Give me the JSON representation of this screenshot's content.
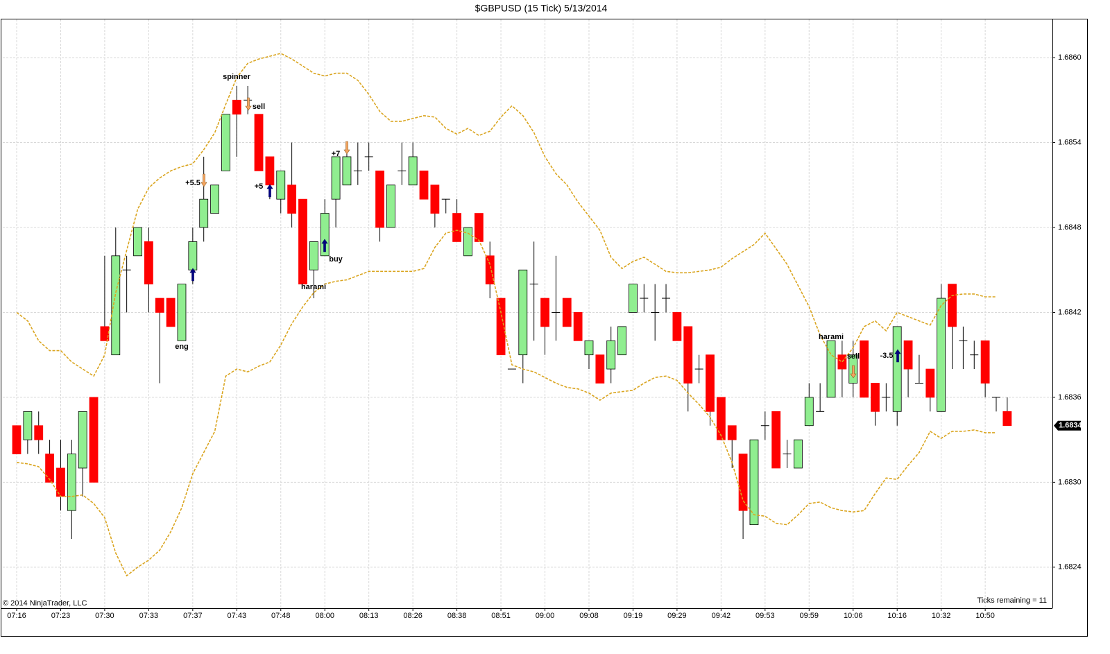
{
  "chart_data": {
    "type": "candlestick",
    "title": "$GBPUSD (15 Tick)  5/13/2014",
    "copyright": "© 2014 NinjaTrader, LLC",
    "status": "Ticks remaining = 11",
    "current_price": 1.6834,
    "annotations": [
      "spinner",
      "sell",
      "+5.5",
      "+5",
      "eng",
      "harami",
      "+7",
      "buy",
      "harami",
      "sell",
      "-3.5"
    ],
    "categories": [
      "07:16",
      null,
      null,
      null,
      "07:23",
      null,
      null,
      null,
      "07:30",
      null,
      null,
      null,
      "07:33",
      null,
      null,
      null,
      "07:37",
      null,
      null,
      null,
      "07:43",
      null,
      null,
      null,
      "07:48",
      null,
      null,
      null,
      "08:00",
      null,
      null,
      null,
      "08:13",
      null,
      null,
      null,
      "08:26",
      null,
      null,
      null,
      "08:38",
      null,
      null,
      null,
      "08:51",
      null,
      null,
      null,
      "09:00",
      null,
      null,
      null,
      "09:08",
      null,
      null,
      null,
      "09:19",
      null,
      null,
      null,
      "09:29",
      null,
      null,
      null,
      "09:42",
      null,
      null,
      null,
      "09:53",
      null,
      null,
      null,
      "09:59",
      null,
      null,
      null,
      "10:06",
      null,
      null,
      null,
      "10:16",
      null,
      null,
      null,
      "10:32",
      null,
      null,
      null,
      "10:50",
      null,
      null
    ],
    "open": [
      1.6834,
      1.6833,
      1.6834,
      1.6832,
      1.6831,
      1.6828,
      1.6831,
      1.6836,
      1.6841,
      1.6839,
      1.6845,
      1.6846,
      1.6847,
      1.6843,
      1.6843,
      1.684,
      1.6845,
      1.6848,
      1.6849,
      1.6852,
      1.6857,
      1.6857,
      1.6856,
      1.6853,
      1.685,
      1.6851,
      1.685,
      1.6845,
      1.6846,
      1.685,
      1.6851,
      1.6852,
      1.6853,
      1.6852,
      1.6848,
      1.6852,
      1.6851,
      1.6852,
      1.6851,
      1.685,
      1.6849,
      1.6846,
      1.6849,
      1.6846,
      1.6843,
      1.6838,
      1.6839,
      1.6844,
      1.6843,
      1.6842,
      1.6843,
      1.6842,
      1.6839,
      1.6839,
      1.6838,
      1.6839,
      1.6842,
      1.6843,
      1.6842,
      1.6843,
      1.6842,
      1.6841,
      1.6838,
      1.6839,
      1.6836,
      1.6834,
      1.6832,
      1.6827,
      1.6834,
      1.6835,
      1.6832,
      1.6831,
      1.6834,
      1.6835,
      1.6836,
      1.6839,
      1.6837,
      1.684,
      1.6837,
      1.6836,
      1.6835,
      1.684,
      1.6837,
      1.6838,
      1.6835,
      1.6844,
      1.684,
      1.6839,
      1.684,
      1.6836,
      1.6835
    ],
    "high": [
      1.6834,
      1.6835,
      1.6835,
      1.6833,
      1.6833,
      1.6833,
      1.6835,
      1.6836,
      1.6846,
      1.6848,
      1.6846,
      1.6848,
      1.6848,
      1.6843,
      1.6843,
      1.6844,
      1.6848,
      1.6853,
      1.6851,
      1.6856,
      1.6858,
      1.6858,
      1.6856,
      1.6853,
      1.6852,
      1.6854,
      1.685,
      1.6847,
      1.685,
      1.6853,
      1.6854,
      1.6854,
      1.6854,
      1.6852,
      1.6851,
      1.6854,
      1.6854,
      1.6852,
      1.6851,
      1.685,
      1.685,
      1.6848,
      1.6849,
      1.6847,
      1.6843,
      1.6838,
      1.6845,
      1.6847,
      1.6843,
      1.6846,
      1.6843,
      1.6842,
      1.684,
      1.6839,
      1.6841,
      1.6841,
      1.6844,
      1.6844,
      1.6844,
      1.6844,
      1.6842,
      1.6841,
      1.6839,
      1.6839,
      1.6836,
      1.6834,
      1.6832,
      1.6833,
      1.6835,
      1.6835,
      1.6833,
      1.6833,
      1.6837,
      1.6837,
      1.684,
      1.684,
      1.684,
      1.684,
      1.6837,
      1.6837,
      1.6841,
      1.684,
      1.6839,
      1.6838,
      1.6844,
      1.6844,
      1.6841,
      1.684,
      1.684,
      1.6836,
      1.6836
    ],
    "low": [
      1.6832,
      1.6832,
      1.6832,
      1.683,
      1.6828,
      1.6826,
      1.6829,
      1.683,
      1.684,
      1.6839,
      1.6842,
      1.6846,
      1.6842,
      1.6837,
      1.6841,
      1.684,
      1.6844,
      1.6847,
      1.6849,
      1.6852,
      1.6853,
      1.6856,
      1.6852,
      1.685,
      1.6849,
      1.6848,
      1.6844,
      1.6843,
      1.6846,
      1.6848,
      1.6851,
      1.6851,
      1.6852,
      1.6847,
      1.6848,
      1.6851,
      1.6851,
      1.685,
      1.6848,
      1.6849,
      1.6847,
      1.6846,
      1.6847,
      1.6843,
      1.6839,
      1.6838,
      1.6837,
      1.684,
      1.6839,
      1.684,
      1.6841,
      1.684,
      1.6838,
      1.6837,
      1.6837,
      1.6839,
      1.6842,
      1.6842,
      1.684,
      1.6842,
      1.684,
      1.6835,
      1.6837,
      1.6834,
      1.6833,
      1.6831,
      1.6826,
      1.6827,
      1.6833,
      1.6831,
      1.6831,
      1.6831,
      1.6834,
      1.6835,
      1.6836,
      1.6836,
      1.6836,
      1.6836,
      1.6834,
      1.6835,
      1.6834,
      1.6836,
      1.6837,
      1.6835,
      1.6835,
      1.6838,
      1.6838,
      1.6838,
      1.6836,
      1.6835,
      1.6834
    ],
    "close": [
      1.6832,
      1.6835,
      1.6833,
      1.683,
      1.6829,
      1.6832,
      1.6835,
      1.683,
      1.684,
      1.6846,
      1.6845,
      1.6848,
      1.6844,
      1.6842,
      1.6841,
      1.6844,
      1.6847,
      1.685,
      1.6851,
      1.6856,
      1.6856,
      1.6857,
      1.6852,
      1.6851,
      1.6852,
      1.6849,
      1.6844,
      1.6847,
      1.6849,
      1.6853,
      1.6853,
      1.6852,
      1.6853,
      1.6848,
      1.6851,
      1.6852,
      1.6853,
      1.685,
      1.6849,
      1.685,
      1.6847,
      1.6848,
      1.6847,
      1.6844,
      1.6839,
      1.6838,
      1.6845,
      1.6844,
      1.6841,
      1.6842,
      1.6841,
      1.684,
      1.684,
      1.6837,
      1.684,
      1.6841,
      1.6844,
      1.6843,
      1.6842,
      1.6843,
      1.684,
      1.6837,
      1.6838,
      1.6835,
      1.6833,
      1.6833,
      1.6828,
      1.6833,
      1.6834,
      1.6831,
      1.6832,
      1.6833,
      1.6836,
      1.6835,
      1.684,
      1.6838,
      1.6839,
      1.6836,
      1.6835,
      1.6836,
      1.6841,
      1.6838,
      1.6837,
      1.6836,
      1.6843,
      1.6841,
      1.684,
      1.6839,
      1.6837,
      1.6836,
      1.6834
    ],
    "upper_band": [
      1.6842,
      1.68414,
      1.684,
      1.68393,
      1.68393,
      1.68385,
      1.6838,
      1.68375,
      1.6839,
      1.68434,
      1.68464,
      1.68493,
      1.68508,
      1.68515,
      1.6852,
      1.68523,
      1.68525,
      1.68535,
      1.68547,
      1.68567,
      1.68586,
      1.68596,
      1.68599,
      1.68601,
      1.68603,
      1.68599,
      1.68594,
      1.68589,
      1.68587,
      1.68589,
      1.68589,
      1.68584,
      1.68574,
      1.68562,
      1.68555,
      1.68555,
      1.68557,
      1.68559,
      1.68558,
      1.6855,
      1.68546,
      1.6855,
      1.68545,
      1.68548,
      1.68558,
      1.68566,
      1.68559,
      1.68547,
      1.6853,
      1.68518,
      1.6851,
      1.68498,
      1.68488,
      1.68478,
      1.68459,
      1.68451,
      1.68456,
      1.68459,
      1.68454,
      1.68449,
      1.68448,
      1.68448,
      1.68449,
      1.6845,
      1.68452,
      1.68458,
      1.68463,
      1.68468,
      1.68476,
      1.68465,
      1.68454,
      1.68439,
      1.68424,
      1.68404,
      1.6839,
      1.68385,
      1.68395,
      1.6841,
      1.68414,
      1.68407,
      1.6842,
      1.68417,
      1.68414,
      1.68411,
      1.68425,
      1.68432,
      1.68433,
      1.68433,
      1.68431,
      1.68431,
      null
    ],
    "lower_band": [
      1.68314,
      1.68313,
      1.68311,
      1.68302,
      1.6829,
      1.6829,
      1.68291,
      1.68285,
      1.68275,
      1.6825,
      1.68234,
      1.6824,
      1.68245,
      1.68252,
      1.68265,
      1.68282,
      1.68306,
      1.68321,
      1.68336,
      1.68375,
      1.6838,
      1.68378,
      1.68382,
      1.68385,
      1.68397,
      1.68412,
      1.68424,
      1.68434,
      1.6844,
      1.68442,
      1.68443,
      1.68446,
      1.68449,
      1.68449,
      1.68449,
      1.68449,
      1.68449,
      1.68451,
      1.68466,
      1.68476,
      1.68478,
      1.68476,
      1.68471,
      1.68454,
      1.6842,
      1.68383,
      1.6838,
      1.68378,
      1.68374,
      1.6837,
      1.68367,
      1.68366,
      1.68363,
      1.68358,
      1.68363,
      1.68364,
      1.68365,
      1.6837,
      1.68374,
      1.68375,
      1.68372,
      1.68363,
      1.68355,
      1.68346,
      1.68333,
      1.68314,
      1.68287,
      1.68277,
      1.68276,
      1.68271,
      1.6827,
      1.68277,
      1.68285,
      1.68286,
      1.68282,
      1.6828,
      1.68279,
      1.6828,
      1.68292,
      1.68303,
      1.68302,
      1.68312,
      1.68321,
      1.68336,
      1.68331,
      1.68336,
      1.68336,
      1.68337,
      1.68335,
      1.68335,
      null
    ],
    "up_color": "#90ee90",
    "down_color": "#ff0000",
    "band_color": "#daa520",
    "ylim": [
      1.68211,
      1.68627
    ],
    "yticks": [
      1.6824,
      {
        "value": 1.683,
        "label": "1.6830"
      },
      1.6836,
      1.6842,
      1.6848,
      1.6854,
      {
        "value": 1.686,
        "label": "1.6860"
      }
    ],
    "grid": true
  }
}
